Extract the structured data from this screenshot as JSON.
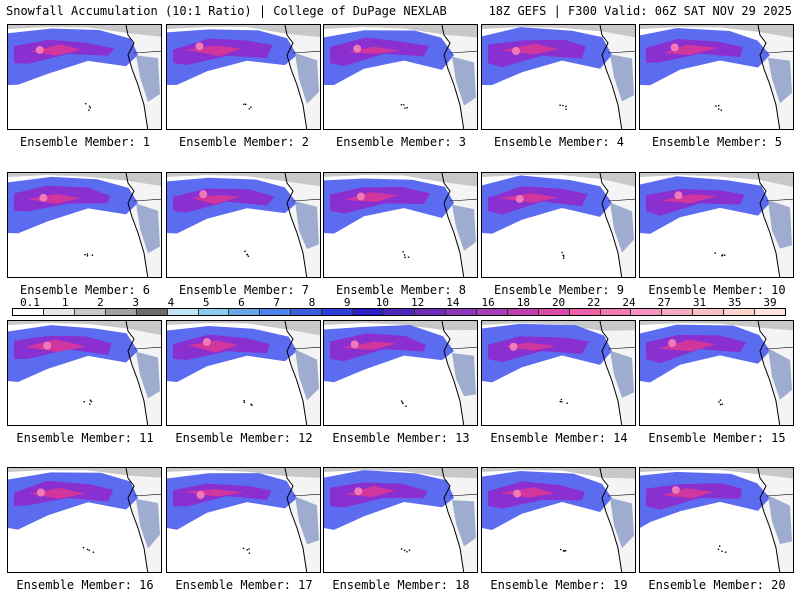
{
  "header": {
    "title_left": "Snowfall Accumulation (10:1 Ratio) | College of DuPage NEXLAB",
    "title_right": "18Z GEFS | F300 Valid: 06Z SAT NOV 29 2025"
  },
  "colors": {
    "ocean": "#ffffff",
    "land_snow_light": "#c8c8c8",
    "land_snow_mid": "#8ea0c8",
    "snow_blue": "#4a5cf0",
    "snow_purple": "#8a2fd0",
    "snow_magenta": "#d0369c",
    "snow_pink": "#f07ab8",
    "coast": "#000000"
  },
  "panels": [
    {
      "label": "Ensemble Member: 1"
    },
    {
      "label": "Ensemble Member: 2"
    },
    {
      "label": "Ensemble Member: 3"
    },
    {
      "label": "Ensemble Member: 4"
    },
    {
      "label": "Ensemble Member: 5"
    },
    {
      "label": "Ensemble Member: 6"
    },
    {
      "label": "Ensemble Member: 7"
    },
    {
      "label": "Ensemble Member: 8"
    },
    {
      "label": "Ensemble Member: 9"
    },
    {
      "label": "Ensemble Member: 10"
    },
    {
      "label": "Ensemble Member: 11"
    },
    {
      "label": "Ensemble Member: 12"
    },
    {
      "label": "Ensemble Member: 13"
    },
    {
      "label": "Ensemble Member: 14"
    },
    {
      "label": "Ensemble Member: 15"
    },
    {
      "label": "Ensemble Member: 16"
    },
    {
      "label": "Ensemble Member: 17"
    },
    {
      "label": "Ensemble Member: 18"
    },
    {
      "label": "Ensemble Member: 19"
    },
    {
      "label": "Ensemble Member: 20"
    }
  ],
  "colorbar": {
    "ticks": [
      "0.1",
      "1",
      "2",
      "3",
      "4",
      "5",
      "6",
      "7",
      "8",
      "9",
      "10",
      "12",
      "14",
      "16",
      "18",
      "20",
      "22",
      "24",
      "27",
      "31",
      "35",
      "39"
    ],
    "colors": [
      "#ffffff",
      "#e6e6e6",
      "#c8c8c8",
      "#a0a0a0",
      "#6e6e6e",
      "#bde3f5",
      "#8fc9ee",
      "#6aa6ea",
      "#4d82e6",
      "#3a5fe0",
      "#2a3fd8",
      "#2a1fc0",
      "#4e26b8",
      "#6a2fb4",
      "#8a37b8",
      "#a63cb6",
      "#c03fae",
      "#d84aa8",
      "#e860a6",
      "#f07ab4",
      "#f493bc",
      "#f6aabf",
      "#f8c2c6",
      "#fad6cc",
      "#fce6da"
    ]
  }
}
